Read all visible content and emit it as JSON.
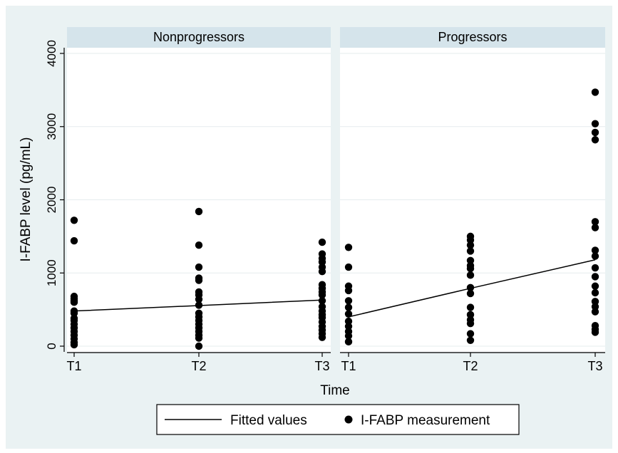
{
  "chart_data": {
    "type": "scatter",
    "ylabel": "I-FABP level (pg/mL)",
    "xlabel": "Time",
    "categories": [
      "T1",
      "T2",
      "T3"
    ],
    "ylim": [
      0,
      4000
    ],
    "yticks": [
      0,
      1000,
      2000,
      3000,
      4000
    ],
    "grid": true,
    "legend": {
      "placement": "bottom",
      "fitted_label": "Fitted values",
      "points_label": "I-FABP measurement"
    },
    "panels": [
      {
        "title": "Nonprogressors",
        "points": {
          "T1": [
            1720,
            1440,
            680,
            650,
            620,
            600,
            480,
            450,
            380,
            350,
            300,
            250,
            200,
            150,
            100,
            50,
            20
          ],
          "T2": [
            1840,
            1380,
            1080,
            930,
            900,
            740,
            700,
            640,
            560,
            450,
            400,
            350,
            300,
            250,
            200,
            150,
            110,
            0
          ],
          "T3": [
            1420,
            1260,
            1200,
            1150,
            1080,
            1020,
            840,
            790,
            740,
            700,
            620,
            540,
            480,
            430,
            390,
            330,
            270,
            220,
            170,
            120
          ]
        },
        "fitted": [
          480,
          555,
          630
        ]
      },
      {
        "title": "Progressors",
        "points": {
          "T1": [
            1350,
            1080,
            820,
            760,
            620,
            530,
            440,
            340,
            270,
            200,
            140,
            60
          ],
          "T2": [
            1500,
            1450,
            1380,
            1300,
            1170,
            1100,
            1060,
            970,
            800,
            720,
            530,
            430,
            360,
            310,
            170,
            80
          ],
          "T3": [
            3470,
            3040,
            2920,
            2820,
            1700,
            1620,
            1310,
            1230,
            1070,
            950,
            820,
            730,
            610,
            540,
            470,
            280,
            230,
            190
          ]
        },
        "fitted": [
          400,
          790,
          1180
        ]
      }
    ]
  }
}
